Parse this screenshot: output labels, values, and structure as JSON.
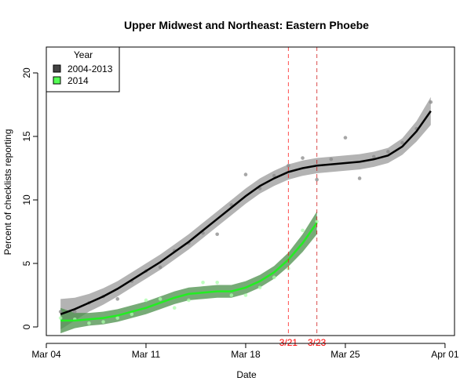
{
  "chart_data": {
    "type": "scatter",
    "title": "Upper Midwest and Northeast: Eastern Phoebe",
    "xlabel": "Date",
    "ylabel": "Percent of checklists reporting",
    "xlim_days_since_mar04": [
      0,
      28
    ],
    "ylim": [
      0,
      22
    ],
    "x_ticks": [
      {
        "day": 0,
        "label": "Mar 04"
      },
      {
        "day": 7,
        "label": "Mar 11"
      },
      {
        "day": 14,
        "label": "Mar 18"
      },
      {
        "day": 21,
        "label": "Mar 25"
      },
      {
        "day": 28,
        "label": "Apr 01"
      }
    ],
    "y_ticks": [
      0,
      5,
      10,
      15,
      20
    ],
    "legend": {
      "title": "Year",
      "position": "top-left",
      "entries": [
        {
          "label": "2004-2013",
          "color": "#444444"
        },
        {
          "label": "2014",
          "color": "#55ff55"
        }
      ]
    },
    "vlines": [
      {
        "day": 17,
        "label": "3/21",
        "color": "#ff0000"
      },
      {
        "day": 19,
        "label": "3/23",
        "color": "#cc0000"
      }
    ],
    "series": [
      {
        "name": "2004-2013",
        "point_color": "#888888",
        "line_color": "#000000",
        "band_color": "#b3b3b3",
        "points": [
          [
            1,
            1.2
          ],
          [
            2,
            1.2
          ],
          [
            3,
            1.9
          ],
          [
            4,
            2.4
          ],
          [
            5,
            2.2
          ],
          [
            6,
            3.6
          ],
          [
            7,
            4.4
          ],
          [
            8,
            4.7
          ],
          [
            9,
            6.0
          ],
          [
            10,
            6.6
          ],
          [
            11,
            7.4
          ],
          [
            12,
            7.3
          ],
          [
            13,
            9.6
          ],
          [
            14,
            12.0
          ],
          [
            15,
            10.9
          ],
          [
            16,
            11.9
          ],
          [
            17,
            12.7
          ],
          [
            18,
            13.3
          ],
          [
            19,
            11.6
          ],
          [
            20,
            13.2
          ],
          [
            21,
            14.9
          ],
          [
            22,
            11.7
          ],
          [
            23,
            13.4
          ],
          [
            24,
            13.8
          ],
          [
            25,
            14.5
          ],
          [
            26,
            15.6
          ],
          [
            27,
            17.7
          ]
        ],
        "fit": [
          [
            1,
            1.0
          ],
          [
            2,
            1.4
          ],
          [
            3,
            1.9
          ],
          [
            4,
            2.4
          ],
          [
            5,
            3.0
          ],
          [
            6,
            3.7
          ],
          [
            7,
            4.4
          ],
          [
            8,
            5.1
          ],
          [
            9,
            5.9
          ],
          [
            10,
            6.7
          ],
          [
            11,
            7.6
          ],
          [
            12,
            8.5
          ],
          [
            13,
            9.4
          ],
          [
            14,
            10.3
          ],
          [
            15,
            11.1
          ],
          [
            16,
            11.7
          ],
          [
            17,
            12.2
          ],
          [
            18,
            12.5
          ],
          [
            19,
            12.7
          ],
          [
            20,
            12.8
          ],
          [
            21,
            12.9
          ],
          [
            22,
            13.0
          ],
          [
            23,
            13.2
          ],
          [
            24,
            13.5
          ],
          [
            25,
            14.2
          ],
          [
            26,
            15.4
          ],
          [
            27,
            17.0
          ]
        ],
        "band_halfwidth": [
          1.2,
          0.9,
          0.7,
          0.65,
          0.6,
          0.6,
          0.6,
          0.6,
          0.6,
          0.6,
          0.6,
          0.6,
          0.6,
          0.6,
          0.6,
          0.6,
          0.6,
          0.6,
          0.6,
          0.6,
          0.6,
          0.6,
          0.6,
          0.6,
          0.65,
          0.8,
          1.1
        ]
      },
      {
        "name": "2014",
        "point_color": "#aaffaa",
        "line_color": "#22ee22",
        "band_color": "#4a8f4a",
        "points": [
          [
            1,
            0.7
          ],
          [
            2,
            0.6
          ],
          [
            3,
            0.3
          ],
          [
            4,
            0.4
          ],
          [
            5,
            0.7
          ],
          [
            6,
            1.0
          ],
          [
            7,
            2.1
          ],
          [
            8,
            2.2
          ],
          [
            9,
            1.5
          ],
          [
            10,
            2.1
          ],
          [
            11,
            3.5
          ],
          [
            12,
            3.5
          ],
          [
            13,
            2.5
          ],
          [
            14,
            2.5
          ],
          [
            15,
            3.1
          ],
          [
            16,
            3.9
          ],
          [
            17,
            4.6
          ],
          [
            18,
            7.6
          ],
          [
            19,
            8.3
          ]
        ],
        "fit": [
          [
            1,
            0.5
          ],
          [
            2,
            0.5
          ],
          [
            3,
            0.6
          ],
          [
            4,
            0.7
          ],
          [
            5,
            0.9
          ],
          [
            6,
            1.2
          ],
          [
            7,
            1.5
          ],
          [
            8,
            1.9
          ],
          [
            9,
            2.3
          ],
          [
            10,
            2.6
          ],
          [
            11,
            2.7
          ],
          [
            12,
            2.8
          ],
          [
            13,
            2.8
          ],
          [
            14,
            3.1
          ],
          [
            15,
            3.6
          ],
          [
            16,
            4.3
          ],
          [
            17,
            5.3
          ],
          [
            18,
            6.6
          ],
          [
            19,
            8.2
          ]
        ],
        "band_halfwidth": [
          1.0,
          0.6,
          0.5,
          0.5,
          0.5,
          0.5,
          0.5,
          0.5,
          0.5,
          0.5,
          0.5,
          0.5,
          0.5,
          0.5,
          0.5,
          0.5,
          0.55,
          0.7,
          0.9
        ]
      }
    ]
  }
}
